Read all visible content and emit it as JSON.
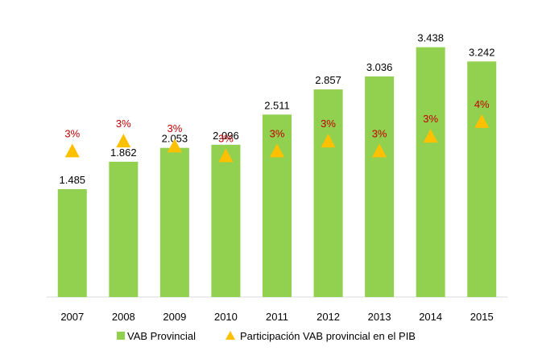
{
  "chart_data": {
    "type": "bar",
    "categories": [
      "2007",
      "2008",
      "2009",
      "2010",
      "2011",
      "2012",
      "2013",
      "2014",
      "2015"
    ],
    "series": [
      {
        "name": "VAB Provincial",
        "type": "bar",
        "color": "#92d050",
        "values": [
          1485,
          1862,
          2053,
          2096,
          2511,
          2857,
          3036,
          3438,
          3242
        ],
        "labels": [
          "1.485",
          "1.862",
          "2.053",
          "2.096",
          "2.511",
          "2.857",
          "3.036",
          "3.438",
          "3.242"
        ]
      },
      {
        "name": "Participación VAB provincial en el PIB",
        "type": "scatter",
        "marker": "triangle",
        "color": "#ffc000",
        "label_color": "#c00000",
        "values": [
          3.0,
          3.2,
          3.1,
          2.9,
          3.0,
          3.2,
          3.0,
          3.3,
          3.6
        ],
        "labels": [
          "3%",
          "3%",
          "3%",
          "3%",
          "3%",
          "3%",
          "3%",
          "3%",
          "4%"
        ]
      }
    ],
    "title": "",
    "xlabel": "",
    "ylabel": "",
    "ylim": [
      0,
      3700
    ],
    "y2lim": [
      0,
      5.5
    ],
    "grid": false,
    "legend": "bottom"
  }
}
